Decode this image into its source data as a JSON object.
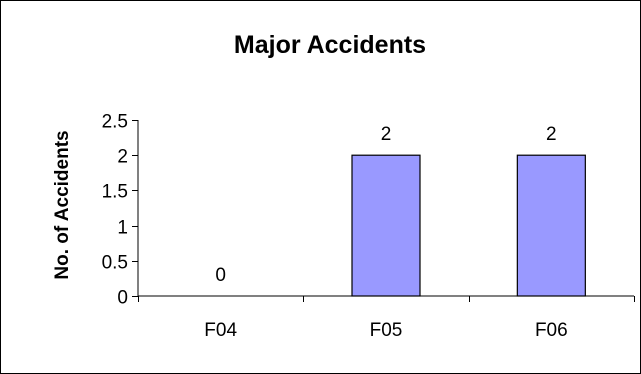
{
  "chart_data": {
    "type": "bar",
    "title": "Major Accidents",
    "xlabel": "",
    "ylabel": "No. of Accidents",
    "categories": [
      "F04",
      "F05",
      "F06"
    ],
    "values": [
      0,
      2,
      2
    ],
    "data_labels": [
      "0",
      "2",
      "2"
    ],
    "ylim": [
      0,
      2.5
    ],
    "yticks": [
      0,
      0.5,
      1,
      1.5,
      2,
      2.5
    ],
    "ytick_labels": [
      "0",
      "0.5",
      "1",
      "1.5",
      "2",
      "2.5"
    ],
    "bar_color": "#9999ff",
    "bar_edge_color": "#000000",
    "grid": false,
    "legend": "none"
  }
}
